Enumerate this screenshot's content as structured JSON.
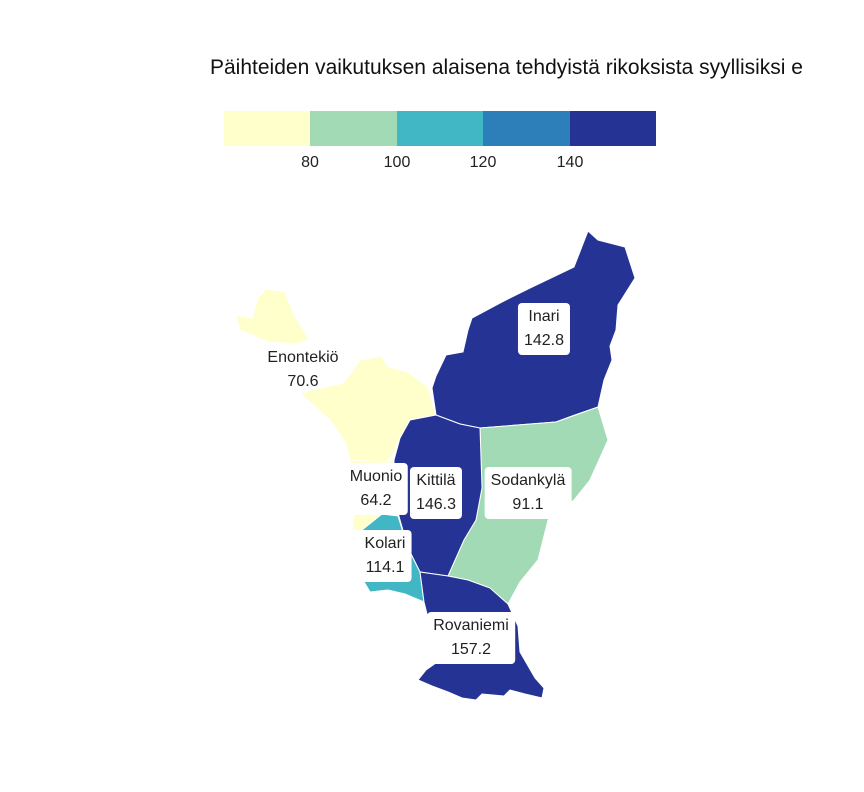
{
  "title": "Päihteiden vaikutuksen alaisena tehdyistä rikoksista syyllisiksi e",
  "legend": {
    "colors": [
      "#ffffcc",
      "#a1dab4",
      "#41b6c4",
      "#2c7fb8",
      "#253494"
    ],
    "ticks": [
      "80",
      "100",
      "120",
      "140"
    ]
  },
  "regions": [
    {
      "name": "Enontekiö",
      "value": "70.6",
      "color": "#ffffcc"
    },
    {
      "name": "Inari",
      "value": "142.8",
      "color": "#253494"
    },
    {
      "name": "Kittilä",
      "value": "146.3",
      "color": "#253494"
    },
    {
      "name": "Muonio",
      "value": "64.2",
      "color": "#ffffcc"
    },
    {
      "name": "Sodankylä",
      "value": "91.1",
      "color": "#a1dab4"
    },
    {
      "name": "Kolari",
      "value": "114.1",
      "color": "#41b6c4"
    },
    {
      "name": "Rovaniemi",
      "value": "157.2",
      "color": "#253494"
    }
  ]
}
